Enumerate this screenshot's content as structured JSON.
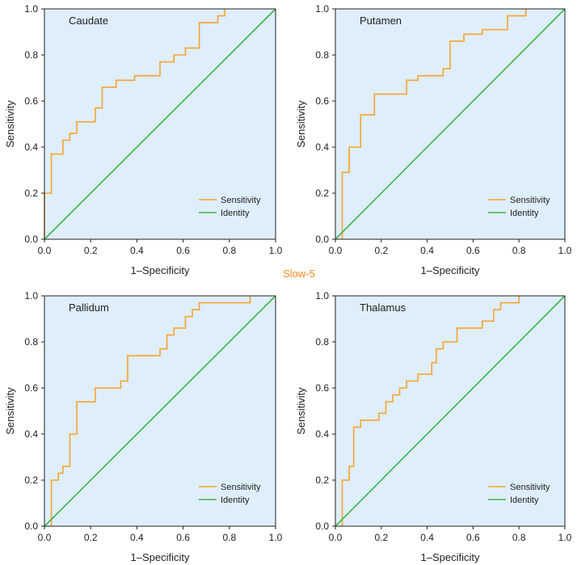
{
  "suptitle": "Slow-5",
  "colors": {
    "sensitivity": "#f7a332",
    "identity": "#3cb54a",
    "plot_background": "#dfeefb",
    "suptitle": "#f08a1a",
    "axis": "#222222"
  },
  "chart_data": [
    {
      "type": "line",
      "title": "Caudate",
      "xlabel": "1–Specificity",
      "ylabel": "Sensitivity",
      "xlim": [
        0,
        1
      ],
      "ylim": [
        0,
        1
      ],
      "xticks": [
        "0.0",
        "0.2",
        "0.4",
        "0.6",
        "0.8",
        "1.0"
      ],
      "yticks": [
        "0.0",
        "0.2",
        "0.4",
        "0.6",
        "0.8",
        "1.0"
      ],
      "legend": [
        "Sensitivity",
        "Identity"
      ],
      "legend_position": "bottom-right",
      "series": [
        {
          "name": "Sensitivity",
          "x": [
            0,
            0,
            0.03,
            0.03,
            0.08,
            0.08,
            0.11,
            0.11,
            0.14,
            0.14,
            0.22,
            0.22,
            0.25,
            0.25,
            0.31,
            0.31,
            0.39,
            0.39,
            0.5,
            0.5,
            0.56,
            0.56,
            0.61,
            0.61,
            0.67,
            0.67,
            0.75,
            0.75,
            0.78,
            0.78
          ],
          "y": [
            0,
            0.2,
            0.2,
            0.37,
            0.37,
            0.43,
            0.43,
            0.46,
            0.46,
            0.51,
            0.51,
            0.57,
            0.57,
            0.66,
            0.66,
            0.69,
            0.69,
            0.71,
            0.71,
            0.77,
            0.77,
            0.8,
            0.8,
            0.83,
            0.83,
            0.94,
            0.94,
            0.97,
            0.97,
            1.0
          ]
        },
        {
          "name": "Identity",
          "x": [
            0,
            1
          ],
          "y": [
            0,
            1
          ]
        }
      ]
    },
    {
      "type": "line",
      "title": "Putamen",
      "xlabel": "1–Specificity",
      "ylabel": "Sensitivity",
      "xlim": [
        0,
        1
      ],
      "ylim": [
        0,
        1
      ],
      "xticks": [
        "0.0",
        "0.2",
        "0.4",
        "0.6",
        "0.8",
        "1.0"
      ],
      "yticks": [
        "0.0",
        "0.2",
        "0.4",
        "0.6",
        "0.8",
        "1.0"
      ],
      "legend": [
        "Sensitivity",
        "Identity"
      ],
      "legend_position": "bottom-right",
      "series": [
        {
          "name": "Sensitivity",
          "x": [
            0.03,
            0.03,
            0.06,
            0.06,
            0.11,
            0.11,
            0.17,
            0.17,
            0.31,
            0.31,
            0.36,
            0.36,
            0.47,
            0.47,
            0.5,
            0.5,
            0.56,
            0.56,
            0.64,
            0.64,
            0.75,
            0.75,
            0.83,
            0.83
          ],
          "y": [
            0,
            0.29,
            0.29,
            0.4,
            0.4,
            0.54,
            0.54,
            0.63,
            0.63,
            0.69,
            0.69,
            0.71,
            0.71,
            0.74,
            0.74,
            0.86,
            0.86,
            0.89,
            0.89,
            0.91,
            0.91,
            0.97,
            0.97,
            1.0
          ]
        },
        {
          "name": "Identity",
          "x": [
            0,
            1
          ],
          "y": [
            0,
            1
          ]
        }
      ]
    },
    {
      "type": "line",
      "title": "Pallidum",
      "xlabel": "1–Specificity",
      "ylabel": "Sensitivity",
      "xlim": [
        0,
        1
      ],
      "ylim": [
        0,
        1
      ],
      "xticks": [
        "0.0",
        "0.2",
        "0.4",
        "0.6",
        "0.8",
        "1.0"
      ],
      "yticks": [
        "0.0",
        "0.2",
        "0.4",
        "0.6",
        "0.8",
        "1.0"
      ],
      "legend": [
        "Sensitivity",
        "Identity"
      ],
      "legend_position": "bottom-right",
      "series": [
        {
          "name": "Sensitivity",
          "x": [
            0.03,
            0.03,
            0.06,
            0.06,
            0.08,
            0.08,
            0.11,
            0.11,
            0.14,
            0.14,
            0.22,
            0.22,
            0.33,
            0.33,
            0.36,
            0.36,
            0.5,
            0.5,
            0.53,
            0.53,
            0.56,
            0.56,
            0.61,
            0.61,
            0.64,
            0.64,
            0.67,
            0.67,
            0.89,
            0.89
          ],
          "y": [
            0,
            0.2,
            0.2,
            0.23,
            0.23,
            0.26,
            0.26,
            0.4,
            0.4,
            0.54,
            0.54,
            0.6,
            0.6,
            0.63,
            0.63,
            0.74,
            0.74,
            0.77,
            0.77,
            0.83,
            0.83,
            0.86,
            0.86,
            0.91,
            0.91,
            0.94,
            0.94,
            0.97,
            0.97,
            1.0
          ]
        },
        {
          "name": "Identity",
          "x": [
            0,
            1
          ],
          "y": [
            0,
            1
          ]
        }
      ]
    },
    {
      "type": "line",
      "title": "Thalamus",
      "xlabel": "1–Specificity",
      "ylabel": "Sensitivity",
      "xlim": [
        0,
        1
      ],
      "ylim": [
        0,
        1
      ],
      "xticks": [
        "0.0",
        "0.2",
        "0.4",
        "0.6",
        "0.8",
        "1.0"
      ],
      "yticks": [
        "0.0",
        "0.2",
        "0.4",
        "0.6",
        "0.8",
        "1.0"
      ],
      "legend": [
        "Sensitivity",
        "Identity"
      ],
      "legend_position": "bottom-right",
      "series": [
        {
          "name": "Sensitivity",
          "x": [
            0.03,
            0.03,
            0.06,
            0.06,
            0.08,
            0.08,
            0.11,
            0.11,
            0.19,
            0.19,
            0.22,
            0.22,
            0.25,
            0.25,
            0.28,
            0.28,
            0.31,
            0.31,
            0.36,
            0.36,
            0.42,
            0.42,
            0.44,
            0.44,
            0.47,
            0.47,
            0.53,
            0.53,
            0.64,
            0.64,
            0.69,
            0.69,
            0.72,
            0.72,
            0.8,
            0.8
          ],
          "y": [
            0,
            0.2,
            0.2,
            0.26,
            0.26,
            0.43,
            0.43,
            0.46,
            0.46,
            0.49,
            0.49,
            0.54,
            0.54,
            0.57,
            0.57,
            0.6,
            0.6,
            0.63,
            0.63,
            0.66,
            0.66,
            0.71,
            0.71,
            0.77,
            0.77,
            0.8,
            0.8,
            0.86,
            0.86,
            0.89,
            0.89,
            0.94,
            0.94,
            0.97,
            0.97,
            1.0
          ]
        },
        {
          "name": "Identity",
          "x": [
            0,
            1
          ],
          "y": [
            0,
            1
          ]
        }
      ]
    }
  ]
}
